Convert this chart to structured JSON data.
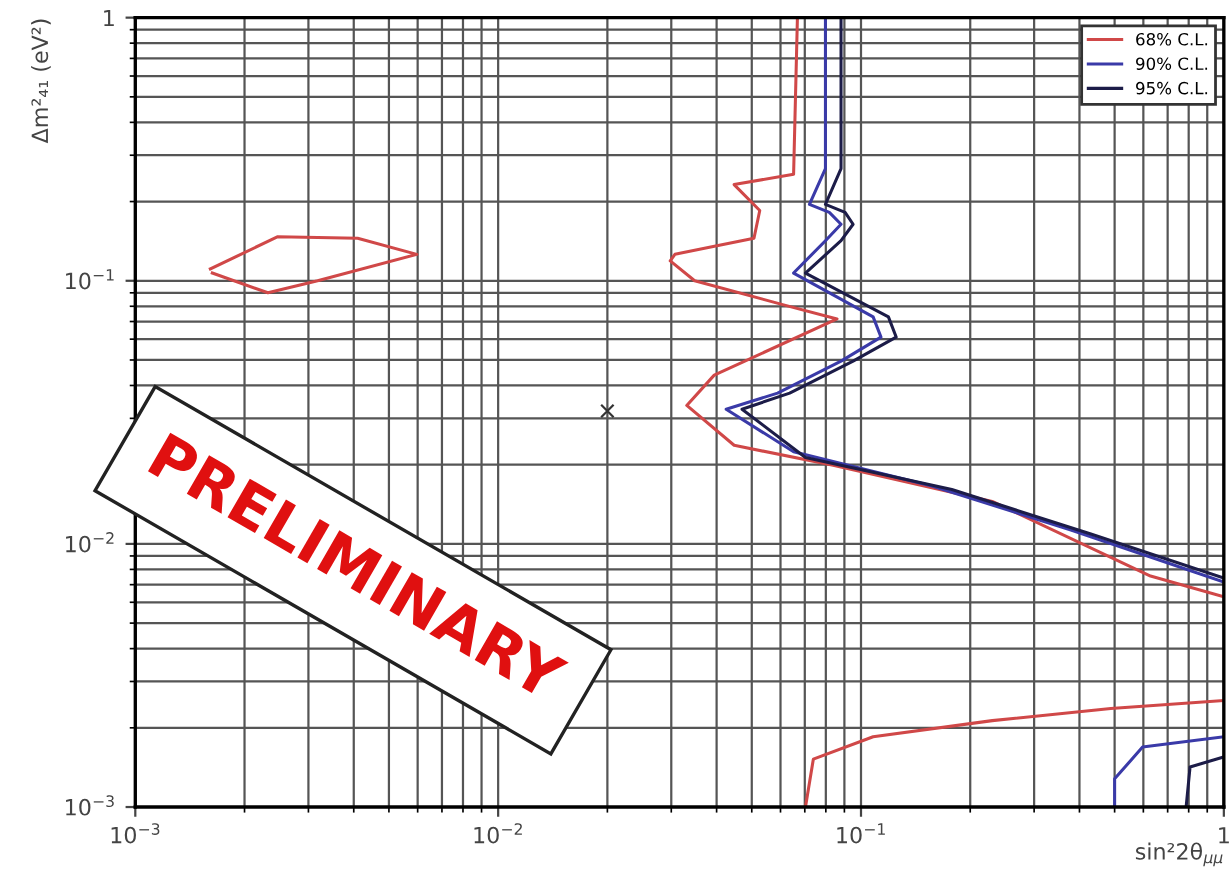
{
  "chart_data": {
    "type": "line",
    "xlabel": "sin²2θ$_{μμ}$",
    "ylabel": "Δm²₄₁ (eV²)",
    "log": "xy",
    "grid": true,
    "legend": "top right",
    "marker": "none",
    "line_style": "solid",
    "xlim": [
      0.001,
      1
    ],
    "ylim": [
      0.001,
      1
    ],
    "xticks": [
      {
        "value": 0.001,
        "label": "10$^{−3}$"
      },
      {
        "value": 0.01,
        "label": "10$^{−2}$"
      },
      {
        "value": 0.1,
        "label": "10$^{−1}$"
      },
      1
    ],
    "yticks": [
      {
        "value": 0.001,
        "label": "10$^{−3}$"
      },
      {
        "value": 0.01,
        "label": "10$^{−2}$"
      },
      {
        "value": 0.1,
        "label": "10$^{−1}$"
      },
      1
    ],
    "annotations": [
      "PRELIMINARY"
    ],
    "series": [
      {
        "name": "68% C.L.",
        "color": "#d04848",
        "x": [
          0.0668,
          0.0652,
          0.0447,
          0.0526,
          0.0507,
          0.0307,
          0.0298,
          0.0348,
          0.0612,
          0.0859,
          0.0394,
          0.0331,
          0.0447,
          0.0838,
          0.23,
          0.628,
          1.0,
          null,
          0.00161,
          0.00247,
          0.0041,
          0.00597,
          0.00318,
          0.00232,
          0.00163,
          null,
          0.0703,
          0.0739,
          0.108,
          0.23,
          0.488,
          1.0
        ],
        "values": [
          1.0,
          0.254,
          0.232,
          0.185,
          0.145,
          0.126,
          0.119,
          0.1,
          0.081,
          0.0716,
          0.0438,
          0.0336,
          0.0237,
          0.0199,
          0.0145,
          0.00755,
          0.0063,
          null,
          0.111,
          0.147,
          0.145,
          0.126,
          0.1,
          0.09,
          0.107,
          null,
          0.001,
          0.00152,
          0.00185,
          0.00213,
          0.00237,
          0.00254
        ]
      },
      {
        "name": "90% C.L.",
        "color": "#3a3aa8",
        "x": [
          0.0798,
          0.0798,
          0.0721,
          0.0818,
          0.0881,
          0.0798,
          0.0652,
          0.108,
          0.1135,
          0.0881,
          0.0589,
          0.0425,
          0.0652,
          0.157,
          0.379,
          1.0,
          null,
          0.5,
          0.5,
          0.597,
          1.0
        ],
        "values": [
          1.0,
          0.267,
          0.195,
          0.182,
          0.164,
          0.142,
          0.107,
          0.0729,
          0.0611,
          0.0495,
          0.0374,
          0.0325,
          0.0224,
          0.0166,
          0.0113,
          0.00716,
          null,
          0.001,
          0.00128,
          0.00169,
          0.00185
        ]
      },
      {
        "name": "95% C.L.",
        "color": "#1c1c48",
        "x": [
          0.0881,
          0.0881,
          0.0798,
          0.0904,
          0.0951,
          0.0881,
          0.0703,
          0.119,
          0.125,
          0.0951,
          0.0636,
          0.047,
          0.0703,
          0.178,
          0.43,
          1.0,
          null,
          0.787,
          0.807,
          1.0
        ],
        "values": [
          1.0,
          0.267,
          0.195,
          0.182,
          0.164,
          0.142,
          0.107,
          0.0729,
          0.0611,
          0.0495,
          0.0374,
          0.0325,
          0.0213,
          0.0161,
          0.0109,
          0.00741,
          null,
          0.001,
          0.00142,
          0.00155
        ]
      },
      {
        "type": "scatter",
        "marker": "cross",
        "color": "#333333",
        "x": [
          0.02
        ],
        "values": [
          0.032
        ]
      }
    ]
  }
}
